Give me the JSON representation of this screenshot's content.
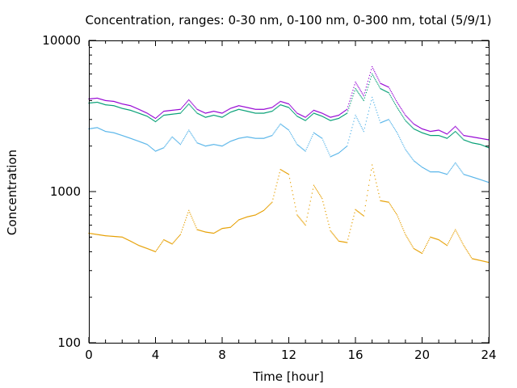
{
  "chart_data": {
    "type": "scatter",
    "title": "Concentration, ranges: 0-30 nm, 0-100 nm, 0-300 nm, total (5/9/1)",
    "xlabel": "Time [hour]",
    "ylabel": "Concentration",
    "xlim": [
      0,
      24
    ],
    "ylim": [
      100,
      10000
    ],
    "yscale": "log",
    "grid": false,
    "legend": "none",
    "x_ticks": [
      "0",
      "4",
      "8",
      "12",
      "16",
      "20",
      "24"
    ],
    "y_ticks": [
      "100",
      "1000",
      "10000"
    ],
    "x_tick_values": [
      0,
      4,
      8,
      12,
      16,
      20,
      24
    ],
    "y_tick_values": [
      100,
      1000,
      10000
    ],
    "x": [
      0,
      0.5,
      1,
      1.5,
      2,
      2.5,
      3,
      3.5,
      4,
      4.5,
      5,
      5.5,
      6,
      6.5,
      7,
      7.5,
      8,
      8.5,
      9,
      9.5,
      10,
      10.5,
      11,
      11.5,
      12,
      12.5,
      13,
      13.5,
      14,
      14.5,
      15,
      15.5,
      16,
      16.5,
      17,
      17.5,
      18,
      18.5,
      19,
      19.5,
      20,
      20.5,
      21,
      21.5,
      22,
      22.5,
      23,
      23.5,
      24
    ],
    "series": [
      {
        "color": "#9400d3",
        "values": [
          4100,
          4150,
          4000,
          3950,
          3800,
          3700,
          3500,
          3300,
          3050,
          3400,
          3450,
          3500,
          4050,
          3500,
          3300,
          3400,
          3300,
          3550,
          3700,
          3600,
          3500,
          3500,
          3600,
          3950,
          3800,
          3300,
          3100,
          3450,
          3300,
          3100,
          3200,
          3500,
          5300,
          4300,
          6700,
          5200,
          4900,
          3900,
          3200,
          2800,
          2600,
          2500,
          2550,
          2400,
          2700,
          2350,
          2300,
          2250,
          2200
        ]
      },
      {
        "color": "#009e73",
        "values": [
          3850,
          3900,
          3750,
          3700,
          3550,
          3450,
          3300,
          3150,
          2900,
          3200,
          3250,
          3300,
          3800,
          3300,
          3100,
          3200,
          3100,
          3350,
          3500,
          3400,
          3300,
          3300,
          3400,
          3750,
          3600,
          3150,
          2950,
          3300,
          3150,
          2950,
          3050,
          3300,
          4800,
          4000,
          6000,
          4800,
          4500,
          3600,
          2950,
          2600,
          2450,
          2350,
          2350,
          2250,
          2500,
          2200,
          2100,
          2050,
          1950
        ]
      },
      {
        "color": "#56b4e9",
        "values": [
          2600,
          2650,
          2500,
          2450,
          2350,
          2250,
          2150,
          2050,
          1850,
          1950,
          2300,
          2050,
          2550,
          2100,
          2000,
          2050,
          2000,
          2150,
          2250,
          2300,
          2250,
          2250,
          2350,
          2800,
          2550,
          2050,
          1850,
          2450,
          2250,
          1700,
          1800,
          2000,
          3200,
          2500,
          4200,
          2850,
          3000,
          2450,
          1900,
          1600,
          1450,
          1350,
          1350,
          1300,
          1550,
          1300,
          1250,
          1200,
          1150
        ]
      },
      {
        "color": "#e69f00",
        "values": [
          530,
          520,
          510,
          505,
          500,
          470,
          440,
          420,
          400,
          480,
          450,
          520,
          750,
          560,
          540,
          530,
          570,
          580,
          650,
          680,
          700,
          750,
          850,
          1400,
          1300,
          700,
          600,
          1100,
          900,
          550,
          470,
          460,
          760,
          690,
          1500,
          870,
          850,
          700,
          520,
          420,
          390,
          500,
          480,
          440,
          560,
          440,
          360,
          350,
          340
        ]
      }
    ]
  }
}
